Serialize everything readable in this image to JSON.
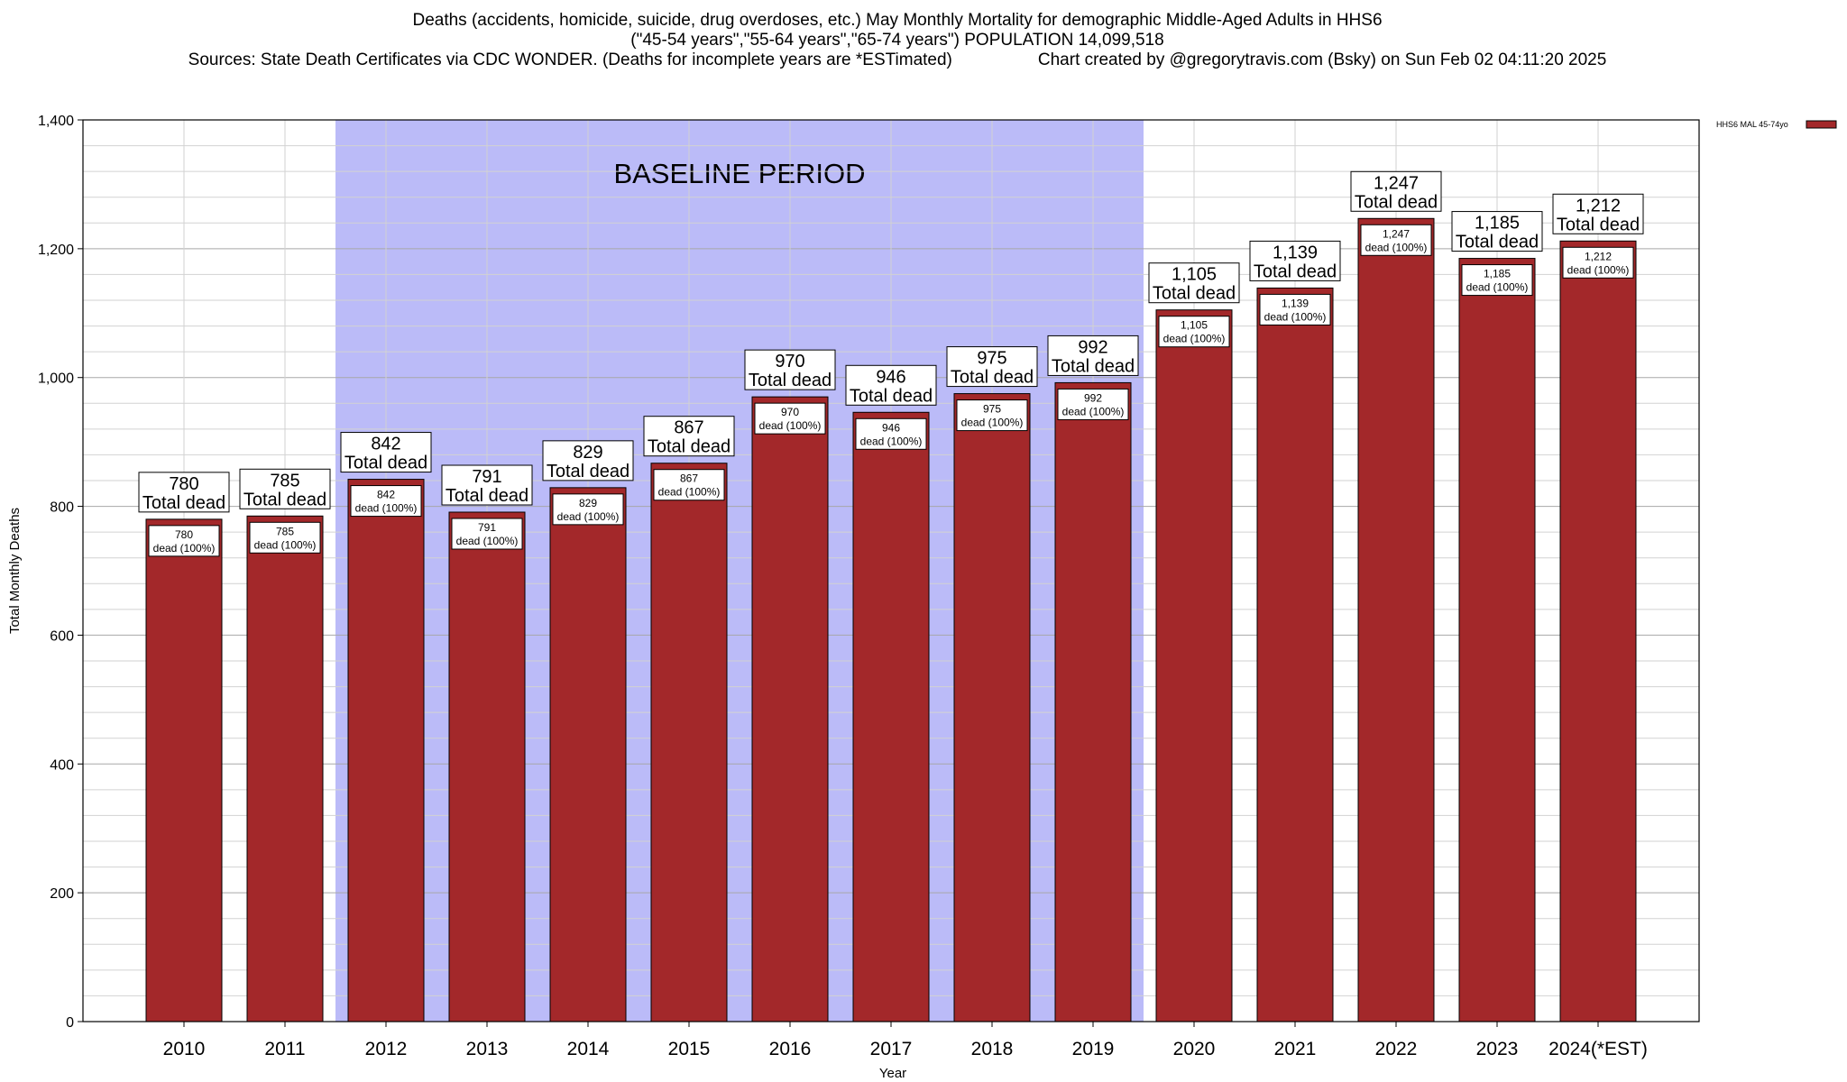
{
  "chart_data": {
    "type": "bar",
    "title_lines": [
      "Deaths (accidents, homicide, suicide, drug overdoses, etc.) May Monthly Mortality for demographic Middle-Aged Adults in HHS6",
      "(\"45-54 years\",\"55-64 years\",\"65-74 years\") POPULATION 14,099,518",
      "Sources: State Death Certificates via CDC WONDER. (Deaths for incomplete years are *ESTimated)                  Chart created by @gregorytravis.com (Bsky) on Sun Feb 02 04:11:20 2025"
    ],
    "xlabel": "Year",
    "ylabel": "Total Monthly Deaths",
    "ylim": [
      0,
      1400
    ],
    "yticks": [
      0,
      200,
      400,
      600,
      800,
      1000,
      1200,
      1400
    ],
    "ytick_labels": [
      "0",
      "200",
      "400",
      "600",
      "800",
      "1,000",
      "1,200",
      "1,400"
    ],
    "categories": [
      "2010",
      "2011",
      "2012",
      "2013",
      "2014",
      "2015",
      "2016",
      "2017",
      "2018",
      "2019",
      "2020",
      "2021",
      "2022",
      "2023",
      "2024(*EST)"
    ],
    "series": [
      {
        "name": "HHS6 MAL 45-74yo",
        "color": "#a3282a",
        "values": [
          780,
          785,
          842,
          791,
          829,
          867,
          970,
          946,
          975,
          992,
          1105,
          1139,
          1247,
          1185,
          1212
        ]
      }
    ],
    "value_labels": [
      "780",
      "785",
      "842",
      "791",
      "829",
      "867",
      "970",
      "946",
      "975",
      "992",
      "1,105",
      "1,139",
      "1,247",
      "1,185",
      "1,212"
    ],
    "total_label_suffix": "Total dead",
    "inner_label_suffix": "dead (100%)",
    "baseline_period": {
      "label": "BASELINE PERIOD",
      "start": "2012",
      "end": "2019",
      "color": "#bbbbf8"
    },
    "grid": true,
    "legend_position": "top-right"
  }
}
